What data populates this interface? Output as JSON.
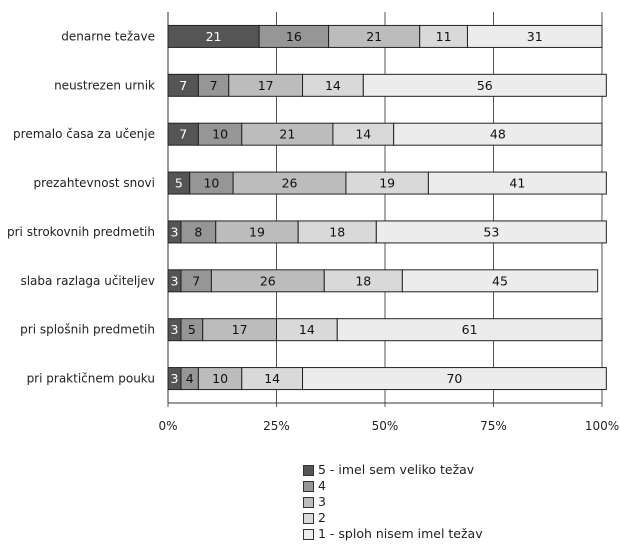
{
  "chart_data": {
    "type": "bar",
    "orientation": "horizontal",
    "stacked": true,
    "percent_stacked": true,
    "categories": [
      "denarne težave",
      "neustrezen urnik",
      "premalo časa za učenje",
      "prezahtevnost snovi",
      "pri strokovnih predmetih",
      "slaba razlaga učiteljev",
      "pri splošnih predmetih",
      "pri praktičnem pouku"
    ],
    "series": [
      {
        "name": "5 - imel sem veliko težav",
        "values": [
          21,
          7,
          7,
          5,
          3,
          3,
          3,
          3
        ],
        "color": "#555555",
        "label_color": "#ffffff"
      },
      {
        "name": "4",
        "values": [
          16,
          7,
          10,
          10,
          8,
          7,
          5,
          4
        ],
        "color": "#969696",
        "label_color": "#111111"
      },
      {
        "name": "3",
        "values": [
          21,
          17,
          21,
          26,
          19,
          26,
          17,
          10
        ],
        "color": "#bcbcbc",
        "label_color": "#111111"
      },
      {
        "name": "2",
        "values": [
          11,
          14,
          14,
          19,
          18,
          18,
          14,
          14
        ],
        "color": "#d9d9d9",
        "label_color": "#111111"
      },
      {
        "name": "1 - sploh nisem imel težav",
        "values": [
          31,
          56,
          48,
          41,
          53,
          45,
          61,
          70
        ],
        "color": "#ececec",
        "label_color": "#111111"
      }
    ],
    "x_ticks": [
      "0%",
      "25%",
      "50%",
      "75%",
      "100%"
    ],
    "xlim": [
      0,
      100
    ],
    "grid": "vertical",
    "legend_position": "bottom",
    "title": "",
    "xlabel": "",
    "ylabel": ""
  }
}
